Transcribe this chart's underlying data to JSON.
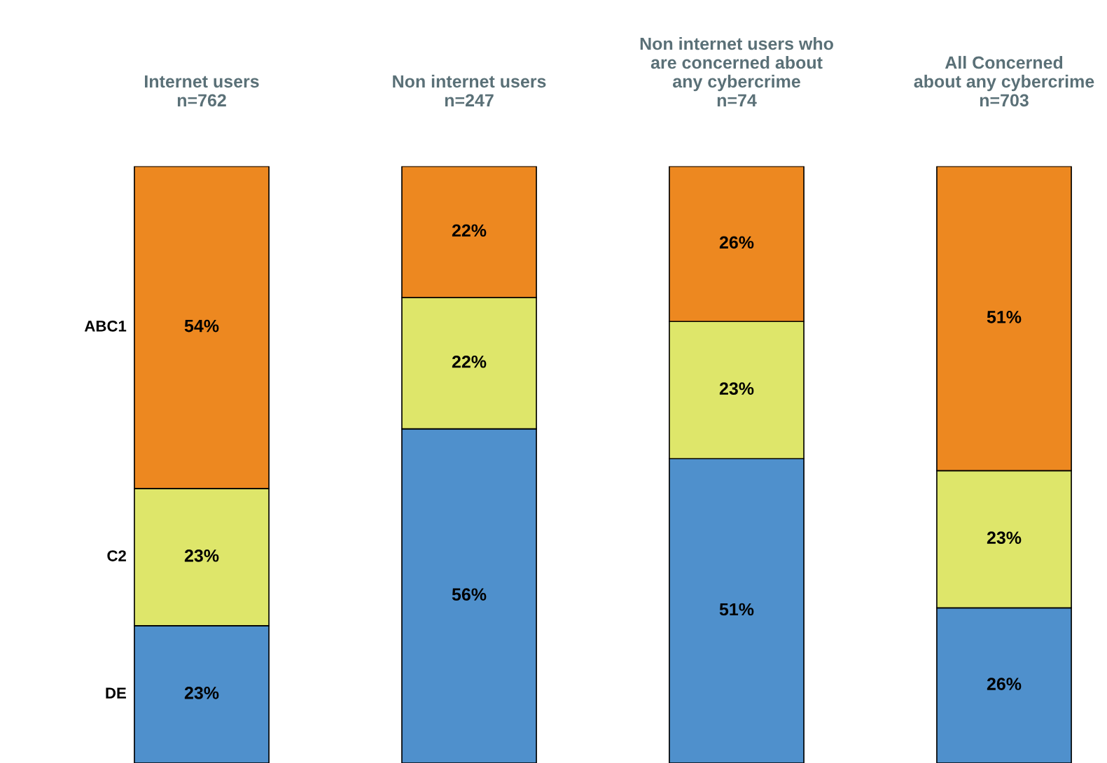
{
  "chart_data": {
    "type": "bar",
    "stacked": true,
    "legend": false,
    "categories": [
      "Internet users\nn=762",
      "Non internet users\nn=247",
      "Non internet users who\nare concerned about\nany cybercrime\nn=74",
      "All Concerned\nabout any cybercrime\nn=703"
    ],
    "series": [
      {
        "name": "DE",
        "color": "#4f90cc",
        "values": [
          23,
          56,
          51,
          26
        ],
        "value_labels": [
          "23%",
          "56%",
          "51%",
          "26%"
        ]
      },
      {
        "name": "C2",
        "color": "#dee66a",
        "values": [
          23,
          22,
          23,
          23
        ],
        "value_labels": [
          "23%",
          "22%",
          "23%",
          "23%"
        ]
      },
      {
        "name": "ABC1",
        "color": "#ed8820",
        "values": [
          54,
          22,
          26,
          51
        ],
        "value_labels": [
          "54%",
          "22%",
          "26%",
          "51%"
        ]
      }
    ]
  }
}
